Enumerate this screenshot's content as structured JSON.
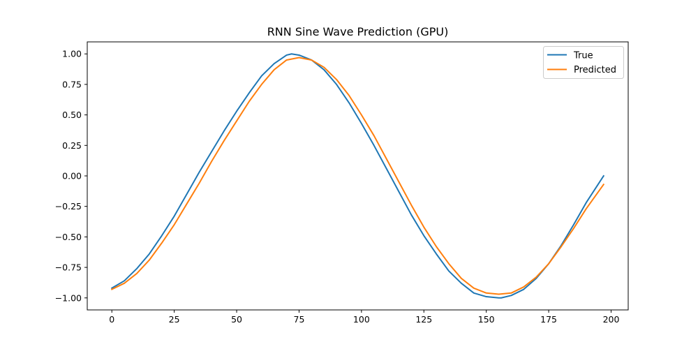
{
  "chart_data": {
    "type": "line",
    "title": "RNN Sine Wave Prediction (GPU)",
    "xlabel": "",
    "ylabel": "",
    "xlim": [
      -9.85,
      206.85
    ],
    "ylim": [
      -1.0985,
      1.0985
    ],
    "xticks": [
      0,
      25,
      50,
      75,
      100,
      125,
      150,
      175,
      200
    ],
    "xtick_labels": [
      "0",
      "25",
      "50",
      "75",
      "100",
      "125",
      "150",
      "175",
      "200"
    ],
    "yticks": [
      -1.0,
      -0.75,
      -0.5,
      -0.25,
      0.0,
      0.25,
      0.5,
      0.75,
      1.0
    ],
    "ytick_labels": [
      "−1.00",
      "−0.75",
      "−0.50",
      "−0.25",
      "0.00",
      "0.25",
      "0.50",
      "0.75",
      "1.00"
    ],
    "grid": false,
    "legend_position": "top-right",
    "series": [
      {
        "name": "True",
        "color": "#1f77b4",
        "x": [
          0,
          5,
          10,
          15,
          20,
          25,
          30,
          35,
          40,
          45,
          50,
          55,
          60,
          65,
          70,
          72,
          75,
          80,
          85,
          90,
          95,
          100,
          105,
          110,
          115,
          120,
          125,
          130,
          135,
          140,
          145,
          150,
          155,
          156,
          160,
          165,
          170,
          175,
          180,
          185,
          190,
          197
        ],
        "y": [
          -0.92,
          -0.86,
          -0.76,
          -0.64,
          -0.49,
          -0.33,
          -0.15,
          0.03,
          0.2,
          0.37,
          0.53,
          0.68,
          0.82,
          0.92,
          0.99,
          1.0,
          0.99,
          0.95,
          0.87,
          0.75,
          0.6,
          0.43,
          0.25,
          0.06,
          -0.13,
          -0.32,
          -0.49,
          -0.64,
          -0.78,
          -0.88,
          -0.96,
          -0.99,
          -1.0,
          -1.0,
          -0.98,
          -0.93,
          -0.84,
          -0.72,
          -0.57,
          -0.4,
          -0.22,
          0.0
        ]
      },
      {
        "name": "Predicted",
        "color": "#ff7f0e",
        "x": [
          0,
          5,
          10,
          15,
          20,
          25,
          30,
          35,
          40,
          45,
          50,
          55,
          60,
          65,
          70,
          75,
          80,
          85,
          90,
          95,
          100,
          105,
          110,
          115,
          120,
          125,
          130,
          135,
          140,
          145,
          150,
          155,
          160,
          165,
          170,
          175,
          180,
          185,
          190,
          197
        ],
        "y": [
          -0.93,
          -0.88,
          -0.8,
          -0.69,
          -0.55,
          -0.4,
          -0.23,
          -0.06,
          0.12,
          0.29,
          0.45,
          0.61,
          0.75,
          0.87,
          0.95,
          0.97,
          0.95,
          0.89,
          0.79,
          0.66,
          0.5,
          0.33,
          0.14,
          -0.05,
          -0.24,
          -0.42,
          -0.58,
          -0.72,
          -0.84,
          -0.92,
          -0.96,
          -0.97,
          -0.96,
          -0.91,
          -0.83,
          -0.72,
          -0.58,
          -0.43,
          -0.27,
          -0.07
        ]
      }
    ]
  }
}
